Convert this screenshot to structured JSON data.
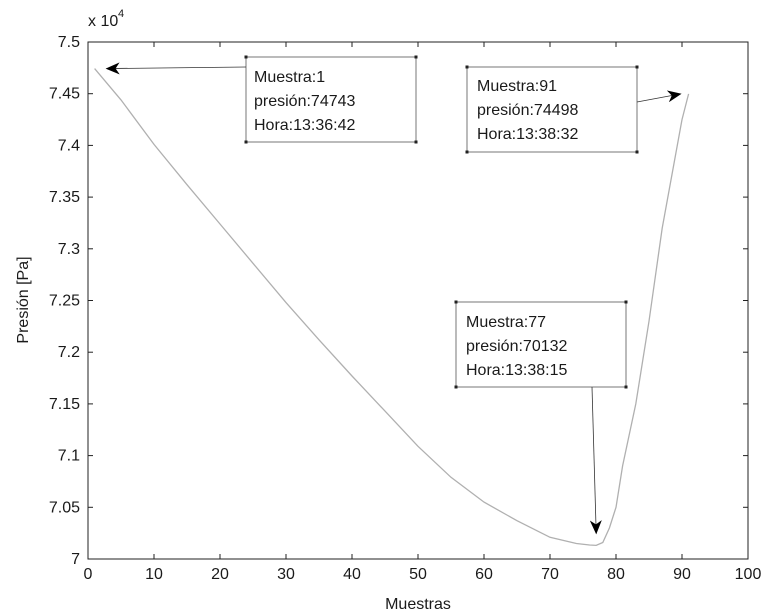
{
  "chart_data": {
    "type": "line",
    "xlabel": "Muestras",
    "ylabel": "Presión [Pa]",
    "exponent_label": "x 10",
    "exponent_power": "4",
    "xlim": [
      0,
      100
    ],
    "ylim": [
      70000,
      75000
    ],
    "xticks": [
      0,
      10,
      20,
      30,
      40,
      50,
      60,
      70,
      80,
      90,
      100
    ],
    "xtick_labels": [
      "0",
      "10",
      "20",
      "30",
      "40",
      "50",
      "60",
      "70",
      "80",
      "90",
      "100"
    ],
    "yticks": [
      70000,
      70500,
      71000,
      71500,
      72000,
      72500,
      73000,
      73500,
      74000,
      74500,
      75000
    ],
    "ytick_labels": [
      "7",
      "7.05",
      "7.1",
      "7.15",
      "7.2",
      "7.25",
      "7.3",
      "7.35",
      "7.4",
      "7.45",
      "7.5"
    ],
    "grid": false,
    "line_color": "#b0b0b0",
    "series": [
      {
        "x": [
          1,
          5,
          10,
          15,
          20,
          25,
          30,
          35,
          40,
          45,
          50,
          55,
          60,
          65,
          70,
          74,
          76,
          77,
          78,
          79,
          80,
          81,
          82,
          83,
          85,
          87,
          89,
          90,
          91
        ],
        "y": [
          74743,
          74440,
          74010,
          73620,
          73240,
          72860,
          72480,
          72120,
          71770,
          71430,
          71090,
          70790,
          70550,
          70370,
          70210,
          70150,
          70135,
          70132,
          70160,
          70300,
          70500,
          70900,
          71200,
          71500,
          72300,
          73200,
          73900,
          74250,
          74498
        ]
      }
    ],
    "annotations": [
      {
        "lines": [
          "Muestra:1",
          "presión:74743",
          "Hora:13:36:42"
        ],
        "x": 1,
        "y": 74743
      },
      {
        "lines": [
          "Muestra:91",
          "presión:74498",
          "Hora:13:38:32"
        ],
        "x": 91,
        "y": 74498
      },
      {
        "lines": [
          "Muestra:77",
          "presión:70132",
          "Hora:13:38:15"
        ],
        "x": 77,
        "y": 70132
      }
    ]
  }
}
